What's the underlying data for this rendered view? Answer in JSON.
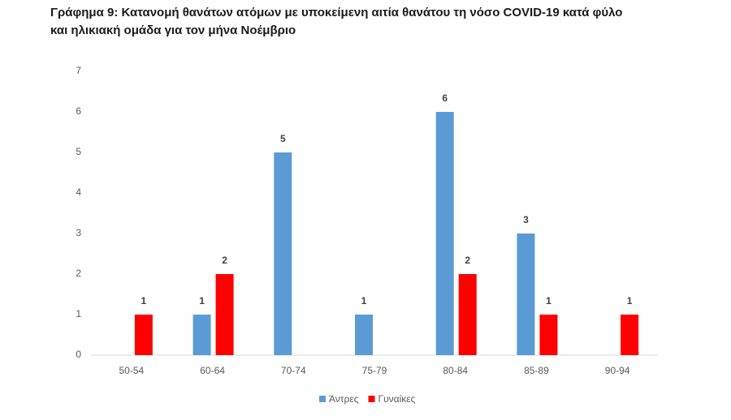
{
  "chart_data": {
    "type": "bar",
    "title": [
      "Γράφημα 9: Κατανομή θανάτων ατόμων με υποκείμενη αιτία θανάτου τη νόσο COVID-19 κατά φύλο",
      "και ηλικιακή ομάδα για τον μήνα Νοέμβριο"
    ],
    "categories": [
      "50-54",
      "60-64",
      "70-74",
      "75-79",
      "80-84",
      "85-89",
      "90-94"
    ],
    "series": [
      {
        "name": "Άντρες",
        "color": "#5b9bd5",
        "values": [
          null,
          1,
          5,
          1,
          6,
          3,
          null
        ]
      },
      {
        "name": "Γυναίκες",
        "color": "#ff0000",
        "values": [
          1,
          2,
          null,
          null,
          2,
          1,
          1
        ]
      }
    ],
    "ylim": [
      0,
      7
    ],
    "yticks": [
      0,
      1,
      2,
      3,
      4,
      5,
      6,
      7
    ],
    "grid": false,
    "legend": "bottom"
  }
}
